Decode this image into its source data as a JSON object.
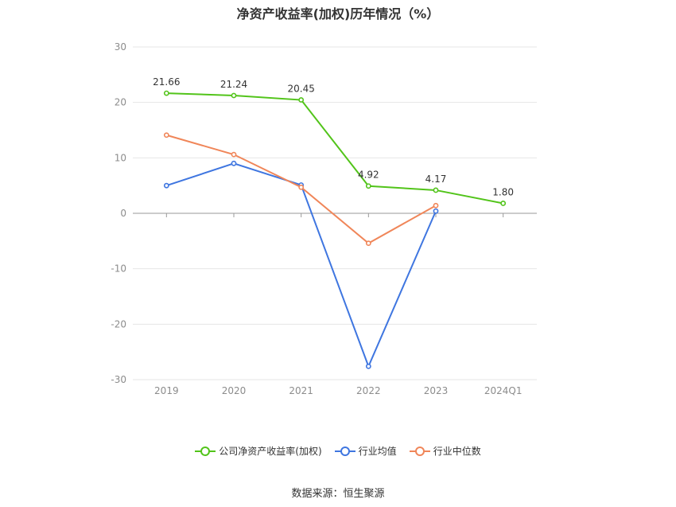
{
  "chart_data": {
    "type": "line",
    "title": "净资产收益率(加权)历年情况（%）",
    "categories": [
      "2019",
      "2020",
      "2021",
      "2022",
      "2023",
      "2024Q1"
    ],
    "ylim": [
      -30,
      30
    ],
    "yticks": [
      30,
      20,
      10,
      0,
      -10,
      -20,
      -30
    ],
    "grid": true,
    "legend_position": "bottom",
    "series": [
      {
        "name": "公司净资产收益率(加权)",
        "color": "#52c41a",
        "values": [
          21.66,
          21.24,
          20.45,
          4.92,
          4.17,
          1.8
        ],
        "labels": [
          "21.66",
          "21.24",
          "20.45",
          "4.92",
          "4.17",
          "1.80"
        ]
      },
      {
        "name": "行业均值",
        "color": "#3f76e0",
        "values": [
          5.0,
          9.0,
          5.1,
          -27.6,
          0.4,
          null
        ]
      },
      {
        "name": "行业中位数",
        "color": "#f08659",
        "values": [
          14.1,
          10.6,
          4.7,
          -5.4,
          1.4,
          null
        ]
      }
    ]
  },
  "footer": {
    "source": "数据来源：恒生聚源"
  }
}
